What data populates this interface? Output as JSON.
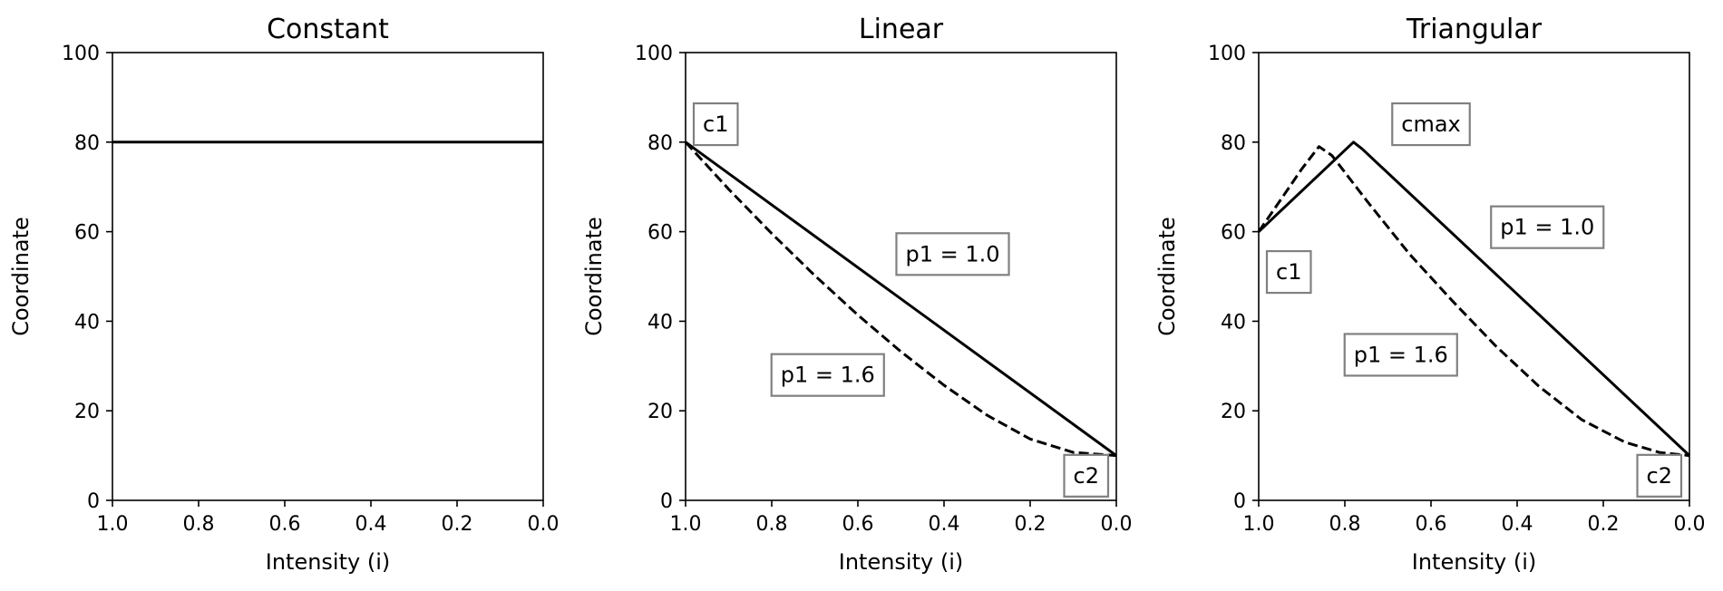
{
  "chart_data": [
    {
      "type": "line",
      "title": "Constant",
      "xlabel": "Intensity (i)",
      "ylabel": "Coordinate",
      "xlim": [
        1.0,
        0.0
      ],
      "ylim": [
        0,
        100
      ],
      "xticks": [
        "1.0",
        "0.8",
        "0.6",
        "0.4",
        "0.2",
        "0.0"
      ],
      "yticks": [
        "0",
        "20",
        "40",
        "60",
        "80",
        "100"
      ],
      "grid": false,
      "series": [
        {
          "style": "solid",
          "x": [
            1.0,
            0.0
          ],
          "y": [
            80,
            80
          ]
        }
      ],
      "annotations": []
    },
    {
      "type": "line",
      "title": "Linear",
      "xlabel": "Intensity (i)",
      "ylabel": "Coordinate",
      "xlim": [
        1.0,
        0.0
      ],
      "ylim": [
        0,
        100
      ],
      "xticks": [
        "1.0",
        "0.8",
        "0.6",
        "0.4",
        "0.2",
        "0.0"
      ],
      "yticks": [
        "0",
        "20",
        "40",
        "60",
        "80",
        "100"
      ],
      "grid": false,
      "series": [
        {
          "style": "solid",
          "x": [
            1.0,
            0.0
          ],
          "y": [
            80,
            10
          ]
        },
        {
          "style": "dashed",
          "x": [
            1.0,
            0.9,
            0.8,
            0.7,
            0.6,
            0.5,
            0.4,
            0.3,
            0.2,
            0.1,
            0.0
          ],
          "y": [
            80,
            69.5,
            59.6,
            50.2,
            41.4,
            33.2,
            25.7,
            19.0,
            13.7,
            10.7,
            10
          ]
        }
      ],
      "annotations": [
        {
          "text": "c1",
          "x": 0.93,
          "y": 84
        },
        {
          "text": "p1 = 1.0",
          "x": 0.38,
          "y": 55
        },
        {
          "text": "p1 = 1.6",
          "x": 0.67,
          "y": 28
        },
        {
          "text": "c2",
          "x": 0.07,
          "y": 5.5
        }
      ]
    },
    {
      "type": "line",
      "title": "Triangular",
      "xlabel": "Intensity (i)",
      "ylabel": "Coordinate",
      "xlim": [
        1.0,
        0.0
      ],
      "ylim": [
        0,
        100
      ],
      "xticks": [
        "1.0",
        "0.8",
        "0.6",
        "0.4",
        "0.2",
        "0.0"
      ],
      "yticks": [
        "0",
        "20",
        "40",
        "60",
        "80",
        "100"
      ],
      "grid": false,
      "series": [
        {
          "style": "solid",
          "x": [
            1.0,
            0.78,
            0.76,
            0.0
          ],
          "y": [
            60,
            80,
            78.5,
            10
          ]
        },
        {
          "style": "dashed",
          "x": [
            1.0,
            0.95,
            0.9,
            0.86,
            0.83,
            0.75,
            0.65,
            0.55,
            0.45,
            0.35,
            0.25,
            0.15,
            0.07,
            0.0
          ],
          "y": [
            60,
            67,
            74,
            79,
            77,
            67,
            55,
            44.5,
            34.5,
            25.5,
            18,
            13,
            10.7,
            10
          ]
        }
      ],
      "annotations": [
        {
          "text": "cmax",
          "x": 0.6,
          "y": 84
        },
        {
          "text": "p1 = 1.0",
          "x": 0.33,
          "y": 61
        },
        {
          "text": "c1",
          "x": 0.93,
          "y": 51
        },
        {
          "text": "p1 = 1.6",
          "x": 0.67,
          "y": 32.5
        },
        {
          "text": "c2",
          "x": 0.07,
          "y": 5.5
        }
      ]
    }
  ]
}
